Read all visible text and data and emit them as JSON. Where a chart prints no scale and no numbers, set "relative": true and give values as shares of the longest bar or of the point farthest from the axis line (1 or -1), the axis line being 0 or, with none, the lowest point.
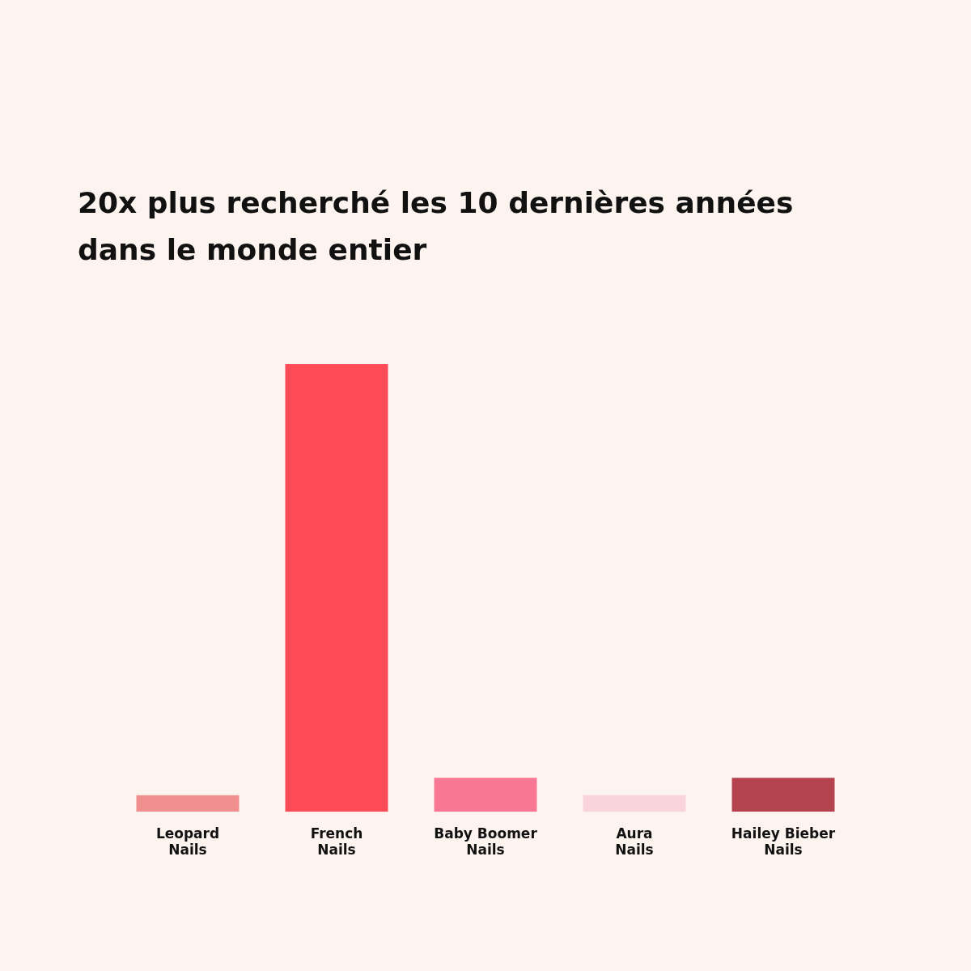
{
  "chart_data": {
    "type": "bar",
    "title": "20x plus recherché les 10 dernières années dans le monde entier",
    "categories": [
      "Leopard Nails",
      "French Nails",
      "Baby Boomer Nails",
      "Aura Nails",
      "Hailey Bieber Nails"
    ],
    "values": [
      0.037,
      1,
      0.076,
      0.037,
      0.076
    ],
    "colors": [
      "#f0908e",
      "#ff4b57",
      "#f87894",
      "#fad4dc",
      "#b5434f"
    ],
    "relative": true,
    "grid": false,
    "legend": false
  }
}
